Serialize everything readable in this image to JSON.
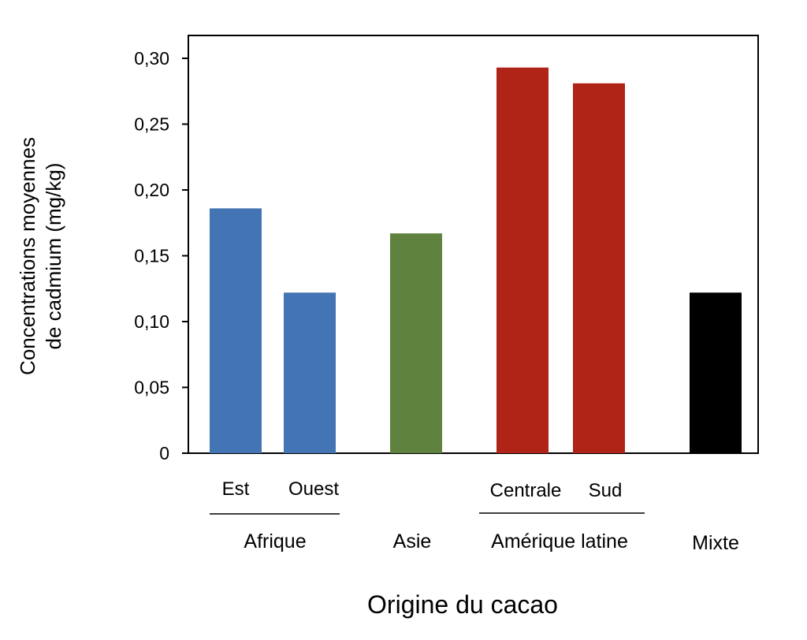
{
  "chart_data": {
    "type": "bar",
    "title": "",
    "xlabel": "Origine du cacao",
    "ylabel_lines": [
      "Concentrations moyennes",
      "de cadmium (mg/kg)"
    ],
    "ylim": [
      0,
      0.3
    ],
    "yticks": [
      0,
      0.05,
      0.1,
      0.15,
      0.2,
      0.25,
      0.3
    ],
    "ytick_labels": [
      "0",
      "0,05",
      "0,10",
      "0,15",
      "0,20",
      "0,25",
      "0,30"
    ],
    "categories": [
      "Est",
      "Ouest",
      "Asie",
      "Centrale",
      "Sud",
      "Mixte"
    ],
    "values": [
      0.186,
      0.122,
      0.167,
      0.293,
      0.281,
      0.122
    ],
    "colors": [
      "#4374b3",
      "#4374b3",
      "#5f823f",
      "#b02418",
      "#b02418",
      "#000000"
    ],
    "sub_labels": [
      "Est",
      "Ouest",
      "Centrale",
      "Sud"
    ],
    "groups": [
      "Afrique",
      "Asie",
      "Amérique latine",
      "Mixte"
    ],
    "grid": false,
    "legend": "none"
  }
}
